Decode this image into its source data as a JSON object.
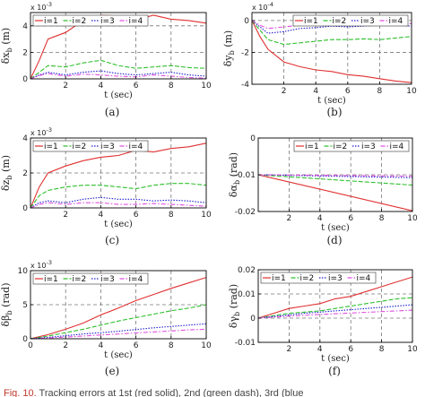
{
  "colors": {
    "i1": "#e03030",
    "i2": "#2ec02e",
    "i3": "#2020d0",
    "i4": "#e050e0",
    "grid": "#777777",
    "axis": "#000000"
  },
  "legend_labels": [
    "i=1",
    "i=2",
    "i=3",
    "i=4"
  ],
  "caption": {
    "fig": "Fig. 10.",
    "text": " Tracking errors at 1st (red solid), 2nd (green dash), 3rd (blue"
  },
  "chart_data": [
    {
      "type": "line",
      "panel_label": "(a)",
      "xlabel": "t (sec)",
      "ylabel": "δx_b (m)",
      "ylabel_main": "δx",
      "ylabel_sub": "b",
      "ylabel_unit": " (m)",
      "exponent": "x 10",
      "exponent_power": "-3",
      "xlim": [
        0,
        10
      ],
      "ylim": [
        0,
        5
      ],
      "xticks": [
        2,
        4,
        6,
        8,
        10
      ],
      "yticks": [
        0,
        2,
        4
      ],
      "legend": "top-left",
      "series": [
        {
          "name": "i=1",
          "x": [
            0,
            0.5,
            1,
            2,
            3,
            4,
            5,
            6,
            7,
            8,
            9,
            10
          ],
          "y": [
            0,
            1.4,
            3.0,
            3.5,
            4.4,
            4.8,
            4.75,
            4.45,
            4.8,
            4.5,
            4.4,
            4.2
          ]
        },
        {
          "name": "i=2",
          "x": [
            0,
            0.5,
            1,
            2,
            3,
            4,
            5,
            6,
            7,
            8,
            9,
            10
          ],
          "y": [
            0,
            0.5,
            1.0,
            0.9,
            1.2,
            1.4,
            1.0,
            0.8,
            0.9,
            1.0,
            0.85,
            0.8
          ]
        },
        {
          "name": "i=3",
          "x": [
            0,
            0.5,
            1,
            2,
            3,
            4,
            5,
            6,
            7,
            8,
            9,
            10
          ],
          "y": [
            0,
            0.3,
            0.5,
            0.3,
            0.5,
            0.6,
            0.4,
            0.3,
            0.4,
            0.5,
            0.3,
            0.2
          ]
        },
        {
          "name": "i=4",
          "x": [
            0,
            0.5,
            1,
            2,
            3,
            4,
            5,
            6,
            7,
            8,
            9,
            10
          ],
          "y": [
            0,
            0.25,
            0.4,
            0.2,
            0.35,
            0.3,
            0.2,
            0.15,
            0.3,
            0.2,
            0.1,
            0.05
          ]
        }
      ]
    },
    {
      "type": "line",
      "panel_label": "(b)",
      "xlabel": "t (sec)",
      "ylabel": "δy_b (m)",
      "ylabel_main": "δy",
      "ylabel_sub": "b",
      "ylabel_unit": " (m)",
      "exponent": "x 10",
      "exponent_power": "-4",
      "xlim": [
        0,
        10
      ],
      "ylim": [
        -4,
        0.5
      ],
      "xticks": [
        2,
        4,
        6,
        8,
        10
      ],
      "yticks": [
        -4,
        -2,
        0
      ],
      "legend": "top-right",
      "series": [
        {
          "name": "i=1",
          "x": [
            0,
            0.5,
            1,
            2,
            3,
            4,
            5,
            6,
            7,
            8,
            9,
            10
          ],
          "y": [
            0,
            -1.0,
            -1.8,
            -2.6,
            -2.9,
            -3.1,
            -3.2,
            -3.4,
            -3.5,
            -3.65,
            -3.8,
            -3.9
          ]
        },
        {
          "name": "i=2",
          "x": [
            0,
            0.5,
            1,
            2,
            3,
            4,
            5,
            6,
            7,
            8,
            9,
            10
          ],
          "y": [
            0,
            -0.6,
            -1.2,
            -1.5,
            -1.4,
            -1.3,
            -1.2,
            -1.2,
            -1.15,
            -1.2,
            -1.1,
            -1.0
          ]
        },
        {
          "name": "i=3",
          "x": [
            0,
            0.5,
            1,
            2,
            3,
            4,
            5,
            6,
            7,
            8,
            9,
            10
          ],
          "y": [
            0,
            -0.4,
            -0.8,
            -0.7,
            -0.5,
            -0.45,
            -0.35,
            -0.4,
            -0.35,
            -0.3,
            -0.3,
            -0.35
          ]
        },
        {
          "name": "i=4",
          "x": [
            0,
            0.5,
            1,
            2,
            3,
            4,
            5,
            6,
            7,
            8,
            9,
            10
          ],
          "y": [
            0,
            -0.3,
            -0.5,
            -0.4,
            -0.3,
            -0.2,
            -0.1,
            -0.2,
            -0.2,
            -0.15,
            -0.1,
            -0.2
          ]
        }
      ]
    },
    {
      "type": "line",
      "panel_label": "(c)",
      "xlabel": "t (sec)",
      "ylabel": "δz_b (m)",
      "ylabel_main": "δz",
      "ylabel_sub": "b",
      "ylabel_unit": " (m)",
      "exponent": "x 10",
      "exponent_power": "-3",
      "xlim": [
        0,
        10
      ],
      "ylim": [
        0,
        4
      ],
      "xticks": [
        2,
        4,
        6,
        8,
        10
      ],
      "yticks": [
        0,
        2,
        4
      ],
      "legend": "top-left",
      "series": [
        {
          "name": "i=1",
          "x": [
            0,
            0.5,
            1,
            2,
            3,
            4,
            5,
            6,
            7,
            8,
            9,
            10
          ],
          "y": [
            0,
            1.2,
            2.0,
            2.4,
            2.7,
            2.9,
            3.0,
            3.3,
            3.2,
            3.4,
            3.5,
            3.7
          ]
        },
        {
          "name": "i=2",
          "x": [
            0,
            0.5,
            1,
            2,
            3,
            4,
            5,
            6,
            7,
            8,
            9,
            10
          ],
          "y": [
            0,
            0.7,
            1.0,
            1.2,
            1.3,
            1.3,
            1.2,
            1.1,
            1.3,
            1.4,
            1.4,
            1.3
          ]
        },
        {
          "name": "i=3",
          "x": [
            0,
            0.5,
            1,
            2,
            3,
            4,
            5,
            6,
            7,
            8,
            9,
            10
          ],
          "y": [
            0,
            0.3,
            0.4,
            0.3,
            0.5,
            0.6,
            0.5,
            0.5,
            0.4,
            0.45,
            0.4,
            0.3
          ]
        },
        {
          "name": "i=4",
          "x": [
            0,
            0.5,
            1,
            2,
            3,
            4,
            5,
            6,
            7,
            8,
            9,
            10
          ],
          "y": [
            0,
            0.2,
            0.3,
            0.2,
            0.3,
            0.3,
            0.2,
            0.2,
            0.25,
            0.2,
            0.15,
            0.1
          ]
        }
      ]
    },
    {
      "type": "line",
      "panel_label": "(d)",
      "xlabel": "t (sec)",
      "ylabel": "δα_b (rad)",
      "ylabel_main": "δα",
      "ylabel_sub": "b",
      "ylabel_unit": " (rad)",
      "exponent": "",
      "exponent_power": "",
      "xlim": [
        0,
        10
      ],
      "ylim": [
        -0.02,
        0
      ],
      "xticks": [
        2,
        4,
        6,
        8,
        10
      ],
      "yticks": [
        -0.02,
        -0.01,
        0
      ],
      "legend": "top-right",
      "series": [
        {
          "name": "i=1",
          "x": [
            0,
            10
          ],
          "y": [
            -0.01,
            -0.0198
          ]
        },
        {
          "name": "i=2",
          "x": [
            0,
            10
          ],
          "y": [
            -0.01,
            -0.0128
          ]
        },
        {
          "name": "i=3",
          "x": [
            0,
            10
          ],
          "y": [
            -0.01,
            -0.0108
          ]
        },
        {
          "name": "i=4",
          "x": [
            0,
            10
          ],
          "y": [
            -0.01,
            -0.0104
          ]
        }
      ]
    },
    {
      "type": "line",
      "panel_label": "(e)",
      "xlabel": "t (sec)",
      "ylabel": "δβ_b (rad)",
      "ylabel_main": "δβ",
      "ylabel_sub": "b",
      "ylabel_unit": " (rad)",
      "exponent": "x 10",
      "exponent_power": "-3",
      "xlim": [
        0,
        10
      ],
      "ylim": [
        0,
        10
      ],
      "xticks": [
        0,
        2,
        4,
        6,
        8,
        10
      ],
      "yticks": [
        0,
        5,
        10
      ],
      "legend": "top-left",
      "series": [
        {
          "name": "i=1",
          "x": [
            0,
            1,
            2,
            3,
            4,
            5,
            6,
            7,
            8,
            9,
            10
          ],
          "y": [
            0,
            0.6,
            1.4,
            2.3,
            3.5,
            4.5,
            5.6,
            6.5,
            7.4,
            8.2,
            9.0
          ]
        },
        {
          "name": "i=2",
          "x": [
            0,
            1,
            2,
            3,
            4,
            5,
            6,
            7,
            8,
            9,
            10
          ],
          "y": [
            0,
            0.4,
            0.9,
            1.4,
            2.0,
            2.6,
            3.1,
            3.6,
            4.1,
            4.5,
            5.0
          ]
        },
        {
          "name": "i=3",
          "x": [
            0,
            1,
            2,
            3,
            4,
            5,
            6,
            7,
            8,
            9,
            10
          ],
          "y": [
            0,
            0.2,
            0.45,
            0.7,
            0.9,
            1.1,
            1.35,
            1.6,
            1.8,
            2.0,
            2.2
          ]
        },
        {
          "name": "i=4",
          "x": [
            0,
            1,
            2,
            3,
            4,
            5,
            6,
            7,
            8,
            9,
            10
          ],
          "y": [
            0,
            0.1,
            0.25,
            0.4,
            0.55,
            0.7,
            0.85,
            1.0,
            1.15,
            1.3,
            1.4
          ]
        }
      ]
    },
    {
      "type": "line",
      "panel_label": "(f)",
      "xlabel": "t (sec)",
      "ylabel": "δγ_b (rad)",
      "ylabel_main": "δγ",
      "ylabel_sub": "b",
      "ylabel_unit": " (rad)",
      "exponent": "",
      "exponent_power": "",
      "xlim": [
        0,
        10
      ],
      "ylim": [
        -0.01,
        0.02
      ],
      "xticks": [
        2,
        4,
        6,
        8,
        10
      ],
      "yticks": [
        -0.01,
        0,
        0.01,
        0.02
      ],
      "legend": "top-left",
      "series": [
        {
          "name": "i=1",
          "x": [
            0,
            1,
            2,
            3,
            4,
            5,
            6,
            7,
            8,
            9,
            10
          ],
          "y": [
            0,
            0.002,
            0.004,
            0.005,
            0.006,
            0.008,
            0.009,
            0.011,
            0.013,
            0.015,
            0.017
          ]
        },
        {
          "name": "i=2",
          "x": [
            0,
            1,
            2,
            3,
            4,
            5,
            6,
            7,
            8,
            9,
            10
          ],
          "y": [
            0,
            0.001,
            0.002,
            0.0025,
            0.003,
            0.004,
            0.005,
            0.006,
            0.007,
            0.008,
            0.0085
          ]
        },
        {
          "name": "i=3",
          "x": [
            0,
            1,
            2,
            3,
            4,
            5,
            6,
            7,
            8,
            9,
            10
          ],
          "y": [
            0,
            0.0007,
            0.0013,
            0.002,
            0.0025,
            0.003,
            0.0035,
            0.004,
            0.0045,
            0.005,
            0.0055
          ]
        },
        {
          "name": "i=4",
          "x": [
            0,
            1,
            2,
            3,
            4,
            5,
            6,
            7,
            8,
            9,
            10
          ],
          "y": [
            0,
            0.0004,
            0.0008,
            0.0012,
            0.0015,
            0.0018,
            0.0021,
            0.0024,
            0.0027,
            0.003,
            0.0033
          ]
        }
      ]
    }
  ]
}
